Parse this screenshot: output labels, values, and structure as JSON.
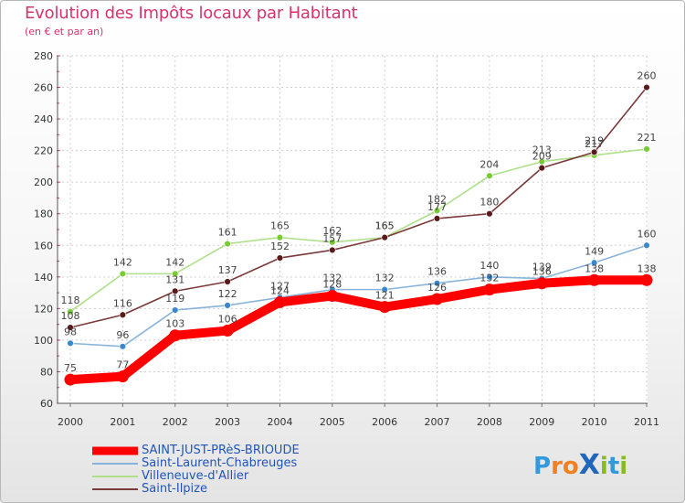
{
  "header": {
    "title": "Evolution des Impôts locaux par Habitant",
    "subtitle": "(en € et par an)"
  },
  "logo": {
    "text": "Proxiti",
    "letters": [
      {
        "ch": "P",
        "color": "#3399dd"
      },
      {
        "ch": "r",
        "color": "#f08020"
      },
      {
        "ch": "o",
        "color": "#f08020"
      },
      {
        "ch": "X",
        "color": "#2266bb"
      },
      {
        "ch": "i",
        "color": "#88bb22"
      },
      {
        "ch": "t",
        "color": "#3399dd"
      },
      {
        "ch": "i",
        "color": "#88bb22"
      }
    ]
  },
  "chart_data": {
    "type": "line",
    "title": "Evolution des Impôts locaux par Habitant",
    "subtitle": "(en € et par an)",
    "xlabel": "",
    "ylabel": "",
    "x": [
      "2000",
      "2001",
      "2002",
      "2003",
      "2004",
      "2005",
      "2006",
      "2007",
      "2008",
      "2009",
      "2010",
      "2011"
    ],
    "ylim": [
      60,
      280
    ],
    "yticks": [
      "60",
      "80",
      "100",
      "120",
      "140",
      "160",
      "180",
      "200",
      "220",
      "240",
      "260",
      "280"
    ],
    "grid": true,
    "legend_position": "bottom-left",
    "series": [
      {
        "name": "SAINT-JUST-PRèS-BRIOUDE",
        "color": "#ff0000",
        "marker": "#ff0000",
        "width": "thick",
        "values": [
          75,
          77,
          103,
          106,
          124,
          128,
          121,
          126,
          132,
          136,
          138,
          138
        ],
        "labels": [
          "75",
          "77",
          "103",
          "106",
          "124",
          "128",
          "121",
          "126",
          "132",
          "136",
          "138",
          "138"
        ]
      },
      {
        "name": "Saint-Laurent-Chabreuges",
        "color": "#88b4dc",
        "marker": "#3a87cc",
        "width": "thin",
        "values": [
          98,
          96,
          119,
          122,
          127,
          132,
          132,
          136,
          140,
          139,
          149,
          160
        ],
        "labels": [
          "98",
          "96",
          "119",
          "122",
          "127",
          "132",
          "132",
          "136",
          "140",
          "139",
          "149",
          "160"
        ]
      },
      {
        "name": "Villeneuve-d'Allier",
        "color": "#aee08a",
        "marker": "#77cc33",
        "width": "thin",
        "values": [
          118,
          142,
          142,
          161,
          165,
          162,
          165,
          182,
          204,
          213,
          217,
          221
        ],
        "labels": [
          "118",
          "142",
          "142",
          "161",
          "165",
          "162",
          "165",
          "182",
          "204",
          "213",
          "217",
          "221"
        ]
      },
      {
        "name": "Saint-Ilpize",
        "color": "#7a3a3a",
        "marker": "#5a1a1a",
        "width": "thin",
        "values": [
          108,
          116,
          131,
          137,
          152,
          157,
          165,
          177,
          180,
          209,
          219,
          260
        ],
        "labels": [
          "108",
          "116",
          "131",
          "137",
          "152",
          "157",
          "165",
          "177",
          "180",
          "209",
          "219",
          "260"
        ]
      }
    ]
  }
}
